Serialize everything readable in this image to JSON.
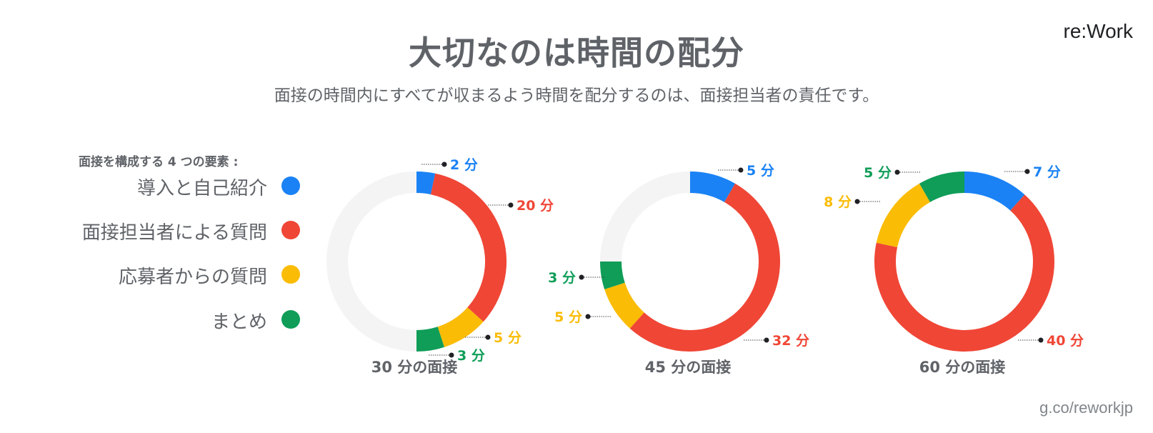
{
  "header": {
    "title": "大切なのは時間の配分",
    "subtitle": "面接の時間内にすべてが収まるよう時間を配分するのは、面接担当者の責任です。",
    "brand": "re:Work",
    "footer_url": "g.co/reworkjp"
  },
  "legend": {
    "title": "面接を構成する 4 つの要素 :",
    "items": [
      {
        "label": "導入と自己紹介",
        "color": "#1a82f5"
      },
      {
        "label": "面接担当者による質問",
        "color": "#f04636"
      },
      {
        "label": "応募者からの質問",
        "color": "#fbbc05"
      },
      {
        "label": "まとめ",
        "color": "#0f9d58"
      }
    ]
  },
  "chart_data": [
    {
      "type": "pie",
      "title": "30 分の面接",
      "categories": [
        "導入と自己紹介",
        "面接担当者による質問",
        "応募者からの質問",
        "まとめ"
      ],
      "values": [
        2,
        20,
        5,
        3
      ],
      "value_labels": [
        "2 分",
        "20 分",
        "5 分",
        "3 分"
      ],
      "total": 60,
      "remainder_color": "#f4f4f4"
    },
    {
      "type": "pie",
      "title": "45 分の面接",
      "categories": [
        "導入と自己紹介",
        "面接担当者による質問",
        "応募者からの質問",
        "まとめ"
      ],
      "values": [
        5,
        32,
        5,
        3
      ],
      "value_labels": [
        "5 分",
        "32 分",
        "5 分",
        "3 分"
      ],
      "total": 60,
      "remainder_color": "#f4f4f4"
    },
    {
      "type": "pie",
      "title": "60 分の面接",
      "categories": [
        "導入と自己紹介",
        "面接担当者による質問",
        "応募者からの質問",
        "まとめ"
      ],
      "values": [
        7,
        40,
        8,
        5
      ],
      "value_labels": [
        "7 分",
        "40 分",
        "8 分",
        "5 分"
      ],
      "total": 60,
      "remainder_color": "#f4f4f4"
    }
  ]
}
